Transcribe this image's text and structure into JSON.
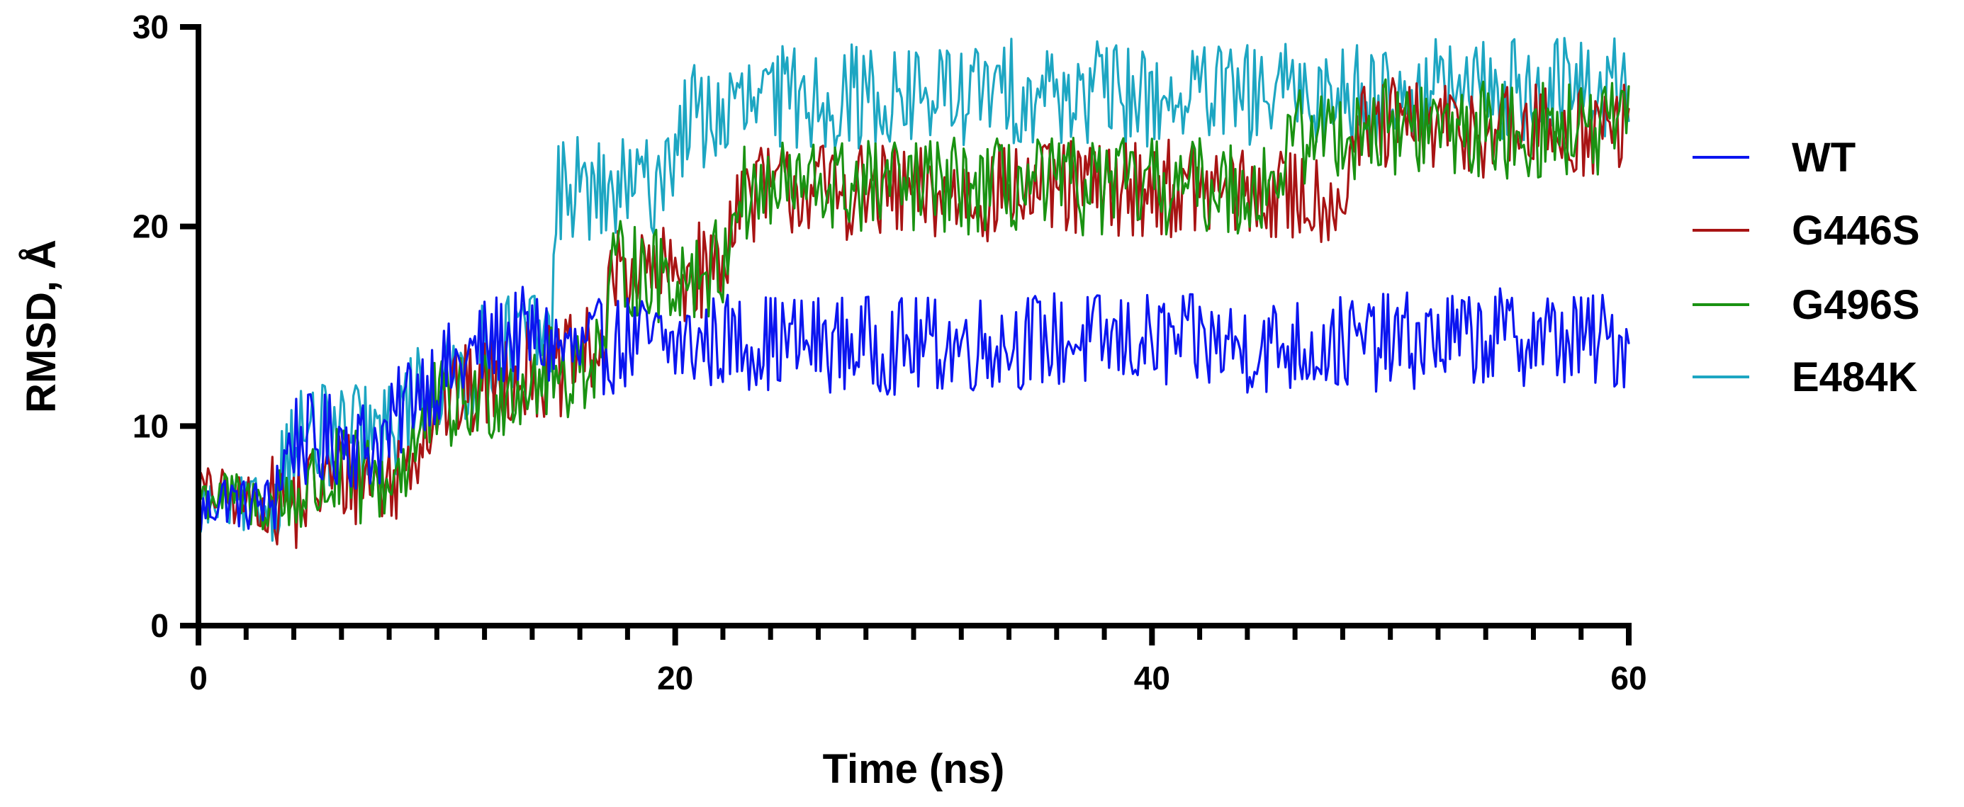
{
  "chart_data": {
    "type": "line",
    "title": "",
    "xlabel": "Time (ns)",
    "ylabel": "RMSD, Å",
    "xlim": [
      0,
      60
    ],
    "ylim": [
      0,
      30
    ],
    "xticks": [
      0,
      20,
      40,
      60
    ],
    "yticks": [
      0,
      10,
      20,
      30
    ],
    "grid": false,
    "legend": "right",
    "series": [
      {
        "name": "WT",
        "color": "#0b15f0",
        "x": [
          0,
          1,
          2,
          3,
          4,
          5,
          6,
          7,
          8,
          9,
          10,
          11,
          12,
          13,
          14,
          15,
          16,
          17,
          18,
          19,
          20,
          22,
          25,
          30,
          35,
          40,
          45,
          50,
          55,
          60
        ],
        "y": [
          5.5,
          6.5,
          6.0,
          6.2,
          9.5,
          9.0,
          9.5,
          9.0,
          9.5,
          12.0,
          12.5,
          13.0,
          14.0,
          14.5,
          14.5,
          14.0,
          13.5,
          14.0,
          14.2,
          14.2,
          14.0,
          14.3,
          14.2,
          14.0,
          14.3,
          14.2,
          14.0,
          14.2,
          14.5,
          14.2
        ],
        "noise": 1.3
      },
      {
        "name": "G446S",
        "color": "#a81414",
        "x": [
          0,
          1,
          2,
          3,
          4,
          5,
          6,
          7,
          8,
          9,
          10,
          11,
          12,
          13,
          14,
          15,
          16,
          17,
          17.5,
          18,
          19,
          20,
          21,
          22,
          22.5,
          25,
          30,
          35,
          40,
          45,
          48,
          48.5,
          50,
          55,
          60
        ],
        "y": [
          6.8,
          6.5,
          6.2,
          6.0,
          6.0,
          7.0,
          7.5,
          7.5,
          7.0,
          9.0,
          11.0,
          11.5,
          12.0,
          12.5,
          13.0,
          12.5,
          13.5,
          14.0,
          18.0,
          18.0,
          17.5,
          17.5,
          17.8,
          18.0,
          21.5,
          22.0,
          21.5,
          21.8,
          22.0,
          21.5,
          21.5,
          24.5,
          25.0,
          24.8,
          24.8
        ],
        "noise": 1.3
      },
      {
        "name": "G496S",
        "color": "#1a9212",
        "x": [
          0,
          1,
          2,
          3,
          4,
          5,
          6,
          7,
          8,
          9,
          10,
          11,
          12,
          13,
          14,
          15,
          16,
          17,
          17.5,
          18,
          19,
          20,
          21,
          22,
          22.5,
          25,
          30,
          35,
          40,
          45,
          46,
          50,
          55,
          60
        ],
        "y": [
          6.5,
          6.5,
          6.2,
          6.0,
          6.5,
          7.0,
          7.5,
          7.2,
          7.2,
          9.0,
          11.0,
          11.0,
          11.5,
          12.0,
          12.5,
          12.5,
          13.0,
          14.0,
          18.0,
          18.0,
          17.5,
          17.5,
          17.8,
          18.0,
          21.5,
          22.0,
          22.0,
          22.0,
          22.0,
          22.0,
          24.5,
          25.0,
          24.8,
          24.8
        ],
        "noise": 1.3
      },
      {
        "name": "E484K",
        "color": "#1da6c2",
        "x": [
          0,
          1,
          2,
          3,
          4,
          5,
          6,
          7,
          8,
          9,
          10,
          11,
          12,
          13,
          14,
          14.8,
          15.1,
          16,
          17,
          18,
          19,
          20,
          20.5,
          21,
          22,
          23,
          25,
          30,
          35,
          40,
          45,
          50,
          55,
          60
        ],
        "y": [
          6.0,
          6.0,
          6.0,
          6.0,
          9.5,
          9.5,
          9.5,
          9.5,
          9.5,
          11.5,
          12.0,
          12.5,
          13.5,
          14.0,
          14.5,
          14.5,
          22.0,
          22.0,
          21.5,
          21.8,
          22.0,
          24.0,
          25.5,
          25.5,
          25.5,
          26.0,
          26.5,
          26.5,
          26.8,
          26.5,
          26.5,
          26.8,
          26.8,
          27.0
        ],
        "noise": 1.4
      }
    ]
  }
}
